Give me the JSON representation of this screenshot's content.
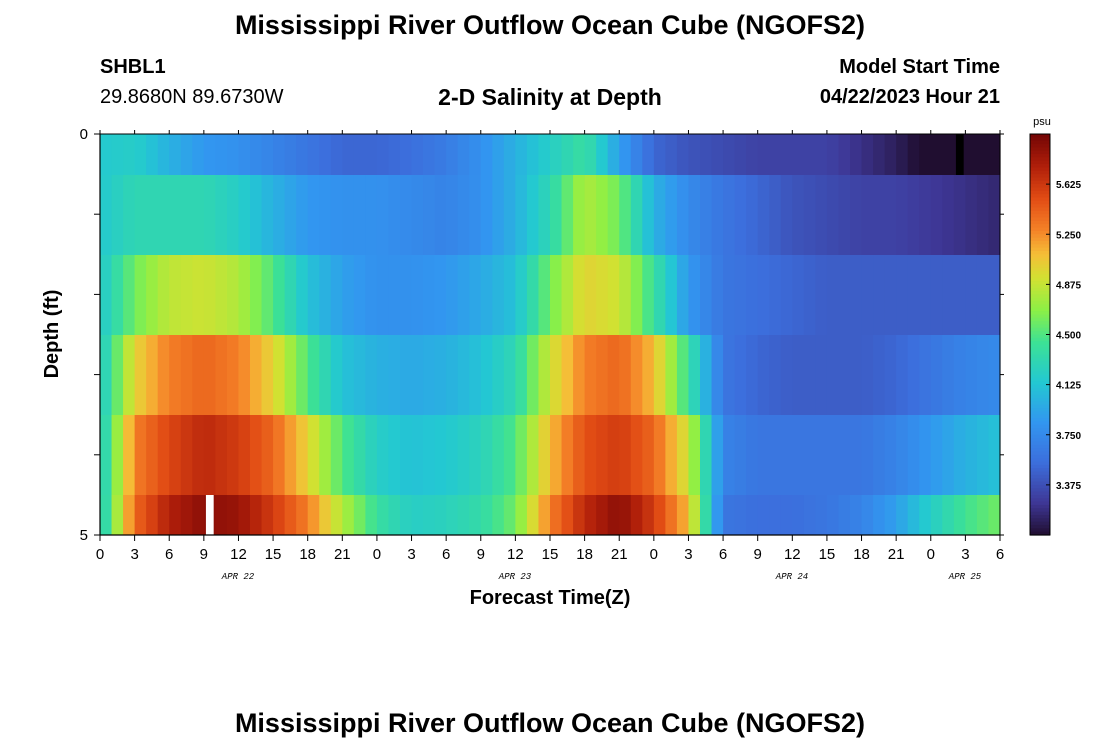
{
  "header": {
    "title": "Mississippi River Outflow Ocean Cube (NGOFS2)",
    "station_id": "SHBL1",
    "station_coords": "29.8680N  89.6730W",
    "subtitle": "2-D Salinity at Depth",
    "model_start_label": "Model Start Time",
    "model_start_value": "04/22/2023 Hour 21"
  },
  "footer": {
    "title": "Mississippi River Outflow Ocean Cube (NGOFS2)"
  },
  "chart_data": {
    "type": "heatmap",
    "title": "2-D Salinity at Depth",
    "xlabel": "Forecast Time(Z)",
    "ylabel": "Depth (ft)",
    "ylim": [
      0,
      5
    ],
    "y_tick_labels": [
      "0",
      "5"
    ],
    "x_tick_labels": [
      "0",
      "3",
      "6",
      "9",
      "12",
      "15",
      "18",
      "21",
      "0",
      "3",
      "6",
      "9",
      "12",
      "15",
      "18",
      "21",
      "0",
      "3",
      "6",
      "9",
      "12",
      "15",
      "18",
      "21",
      "0",
      "3",
      "6"
    ],
    "date_labels": [
      "APR 22",
      "APR 23",
      "APR 24",
      "APR 25"
    ],
    "colorbar": {
      "unit": "psu",
      "ticks": [
        "5.625",
        "5.250",
        "4.875",
        "4.500",
        "4.125",
        "3.750",
        "3.375"
      ],
      "tick_values": [
        5.625,
        5.25,
        4.875,
        4.5,
        4.125,
        3.75,
        3.375
      ],
      "range": [
        3.0,
        6.0
      ]
    },
    "time_hours_start": 0,
    "time_hours_step": 1,
    "time_hours_end": 78,
    "depth_rows_ft": [
      "0-0.5",
      "0.5-1.5",
      "1.5-2.5",
      "2.5-3.5",
      "3.5-4.5",
      "4.5-5"
    ],
    "salinity_keyframes_hours": [
      0,
      3,
      6,
      9,
      12,
      15,
      18,
      21,
      24,
      27,
      30,
      33,
      36,
      39,
      42,
      45,
      48,
      51,
      54,
      57,
      60,
      63,
      66,
      69,
      72,
      75,
      78
    ],
    "salinity_psu": [
      [
        4.15,
        4.2,
        4.0,
        3.85,
        3.8,
        3.7,
        3.6,
        3.5,
        3.5,
        3.55,
        3.65,
        3.8,
        4.0,
        4.2,
        4.4,
        3.9,
        3.5,
        3.4,
        3.35,
        3.3,
        3.3,
        3.3,
        3.2,
        3.1,
        2.95,
        2.85,
        3.0
      ],
      [
        4.15,
        4.3,
        4.3,
        4.3,
        4.2,
        4.0,
        3.85,
        3.8,
        3.8,
        3.75,
        3.7,
        3.8,
        4.0,
        4.3,
        4.8,
        4.6,
        4.0,
        3.75,
        3.6,
        3.5,
        3.4,
        3.35,
        3.3,
        3.3,
        3.25,
        3.2,
        3.15
      ],
      [
        4.15,
        4.6,
        4.85,
        4.9,
        4.8,
        4.5,
        4.1,
        3.9,
        3.8,
        3.8,
        3.85,
        3.95,
        4.1,
        4.6,
        5.0,
        4.9,
        4.4,
        3.85,
        3.6,
        3.55,
        3.5,
        3.45,
        3.45,
        3.45,
        3.45,
        3.45,
        3.45
      ],
      [
        4.15,
        5.0,
        5.3,
        5.4,
        5.3,
        5.0,
        4.5,
        4.1,
        4.0,
        3.95,
        4.0,
        4.1,
        4.3,
        4.9,
        5.3,
        5.4,
        5.1,
        4.4,
        3.6,
        3.5,
        3.45,
        3.45,
        3.45,
        3.5,
        3.6,
        3.7,
        3.75
      ],
      [
        4.15,
        5.3,
        5.55,
        5.7,
        5.6,
        5.4,
        5.0,
        4.5,
        4.2,
        4.1,
        4.15,
        4.25,
        4.5,
        5.1,
        5.5,
        5.6,
        5.4,
        4.9,
        3.7,
        3.6,
        3.6,
        3.6,
        3.6,
        3.7,
        3.85,
        4.0,
        4.1
      ],
      [
        4.15,
        5.4,
        5.75,
        5.9,
        5.85,
        5.6,
        5.3,
        4.8,
        4.4,
        4.2,
        4.25,
        4.35,
        4.6,
        5.3,
        5.7,
        5.9,
        5.6,
        5.1,
        3.6,
        3.55,
        3.55,
        3.6,
        3.7,
        3.9,
        4.2,
        4.45,
        4.6
      ]
    ],
    "gaps": [
      {
        "row": 5,
        "hour": 9,
        "color": "#ffffff"
      },
      {
        "row": 0,
        "hour": 74,
        "color": "#000000"
      }
    ]
  }
}
